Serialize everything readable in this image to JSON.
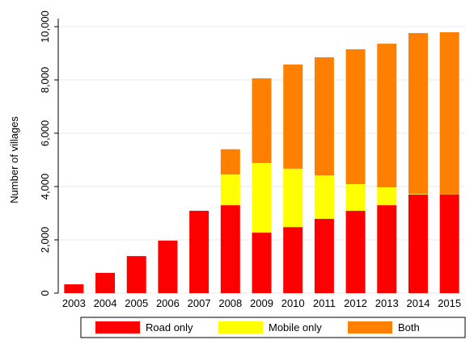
{
  "chart_data": {
    "type": "stacked_bar",
    "y_label": "Number of villages",
    "categories": [
      "2003",
      "2004",
      "2005",
      "2006",
      "2007",
      "2008",
      "2009",
      "2010",
      "2011",
      "2012",
      "2013",
      "2014",
      "2015"
    ],
    "series": [
      {
        "name": "Road only",
        "color": "#ff0000",
        "values": [
          330,
          760,
          1390,
          1970,
          3090,
          3300,
          2270,
          2480,
          2790,
          3090,
          3300,
          3700,
          3700
        ]
      },
      {
        "name": "Mobile only",
        "color": "#ffff00",
        "values": [
          0,
          0,
          0,
          0,
          0,
          1150,
          2610,
          2190,
          1630,
          1000,
          670,
          20,
          0
        ]
      },
      {
        "name": "Both",
        "color": "#ff8000",
        "values": [
          0,
          0,
          0,
          0,
          0,
          950,
          3180,
          3910,
          4430,
          5060,
          5390,
          6040,
          6090
        ]
      }
    ],
    "ylim": [
      0,
      10000
    ],
    "yticks": [
      0,
      {
        "value": 2000,
        "label": "2,000"
      },
      {
        "value": 4000,
        "label": "4,000"
      },
      {
        "value": 6000,
        "label": "6,000"
      },
      {
        "value": 8000,
        "label": "8,000"
      },
      {
        "value": 10000,
        "label": "10,000"
      }
    ],
    "grid": true
  }
}
